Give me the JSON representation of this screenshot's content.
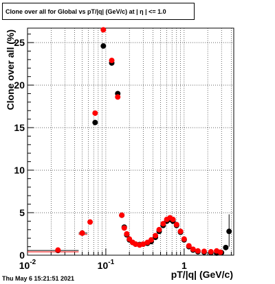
{
  "chart_data": {
    "type": "scatter",
    "title": "Clone  over all for Global vs pT/|q| (GeV/c) at |  η | <= 1.0",
    "xlabel": "pT/|q| (GeV/c)",
    "ylabel": "Clone  over all (%)",
    "xscale": "log",
    "xlim": [
      0.01,
      4.3
    ],
    "ylim": [
      0,
      26.7
    ],
    "x_tick_labels": [
      "10^-2",
      "10^-1",
      "1"
    ],
    "y_tick_values": [
      0,
      5,
      10,
      15,
      20,
      25
    ],
    "grid": true,
    "series": [
      {
        "color": "#000000",
        "points": [
          [
            0.0245,
            0.55
          ],
          [
            0.05,
            2.6
          ],
          [
            0.073,
            15.6
          ],
          [
            0.093,
            24.6
          ],
          [
            0.119,
            22.6
          ],
          [
            0.142,
            19.0
          ],
          [
            0.16,
            4.7
          ],
          [
            0.172,
            3.3
          ],
          [
            0.185,
            2.4
          ],
          [
            0.2,
            1.8
          ],
          [
            0.22,
            1.5
          ],
          [
            0.24,
            1.3
          ],
          [
            0.27,
            1.25
          ],
          [
            0.3,
            1.3
          ],
          [
            0.34,
            1.4
          ],
          [
            0.38,
            1.6
          ],
          [
            0.43,
            2.1
          ],
          [
            0.48,
            2.8
          ],
          [
            0.54,
            3.5
          ],
          [
            0.6,
            4.0
          ],
          [
            0.66,
            4.2
          ],
          [
            0.72,
            4.0
          ],
          [
            0.8,
            3.5
          ],
          [
            0.9,
            2.7
          ],
          [
            1.0,
            1.8
          ],
          [
            1.15,
            1.0
          ],
          [
            1.3,
            0.6
          ],
          [
            1.5,
            0.4
          ],
          [
            1.8,
            0.35
          ],
          [
            2.2,
            0.3
          ],
          [
            2.6,
            0.25
          ],
          [
            3.0,
            0.3
          ],
          [
            3.4,
            0.9
          ],
          [
            3.75,
            2.8
          ]
        ]
      },
      {
        "color": "#ff0000",
        "points": [
          [
            0.0245,
            0.6
          ],
          [
            0.05,
            2.6
          ],
          [
            0.063,
            3.9
          ],
          [
            0.073,
            16.7
          ],
          [
            0.093,
            26.5
          ],
          [
            0.119,
            22.9
          ],
          [
            0.142,
            18.6
          ],
          [
            0.16,
            4.7
          ],
          [
            0.172,
            3.2
          ],
          [
            0.185,
            2.5
          ],
          [
            0.2,
            1.9
          ],
          [
            0.22,
            1.5
          ],
          [
            0.24,
            1.3
          ],
          [
            0.27,
            1.2
          ],
          [
            0.3,
            1.3
          ],
          [
            0.34,
            1.5
          ],
          [
            0.38,
            1.8
          ],
          [
            0.43,
            2.3
          ],
          [
            0.48,
            3.0
          ],
          [
            0.54,
            3.7
          ],
          [
            0.6,
            4.2
          ],
          [
            0.66,
            4.4
          ],
          [
            0.72,
            4.2
          ],
          [
            0.8,
            3.6
          ],
          [
            0.9,
            2.8
          ],
          [
            1.0,
            1.9
          ],
          [
            1.15,
            1.1
          ],
          [
            1.3,
            0.7
          ],
          [
            1.5,
            0.5
          ],
          [
            1.8,
            0.45
          ],
          [
            2.2,
            0.4
          ],
          [
            2.6,
            0.5
          ],
          [
            2.9,
            0.35
          ]
        ]
      }
    ],
    "error_bars_x": [
      {
        "x": 0.0245,
        "y": 0.55,
        "xlo": 0.01,
        "xhi": 0.045
      },
      {
        "x": 0.05,
        "y": 2.6,
        "xlo": 0.045,
        "xhi": 0.058
      }
    ],
    "error_bars_y": [
      {
        "x": 3.75,
        "ylo": 1.0,
        "yhi": 4.8
      }
    ]
  },
  "timestamp": "Thu May  6 15:21:51 2021"
}
